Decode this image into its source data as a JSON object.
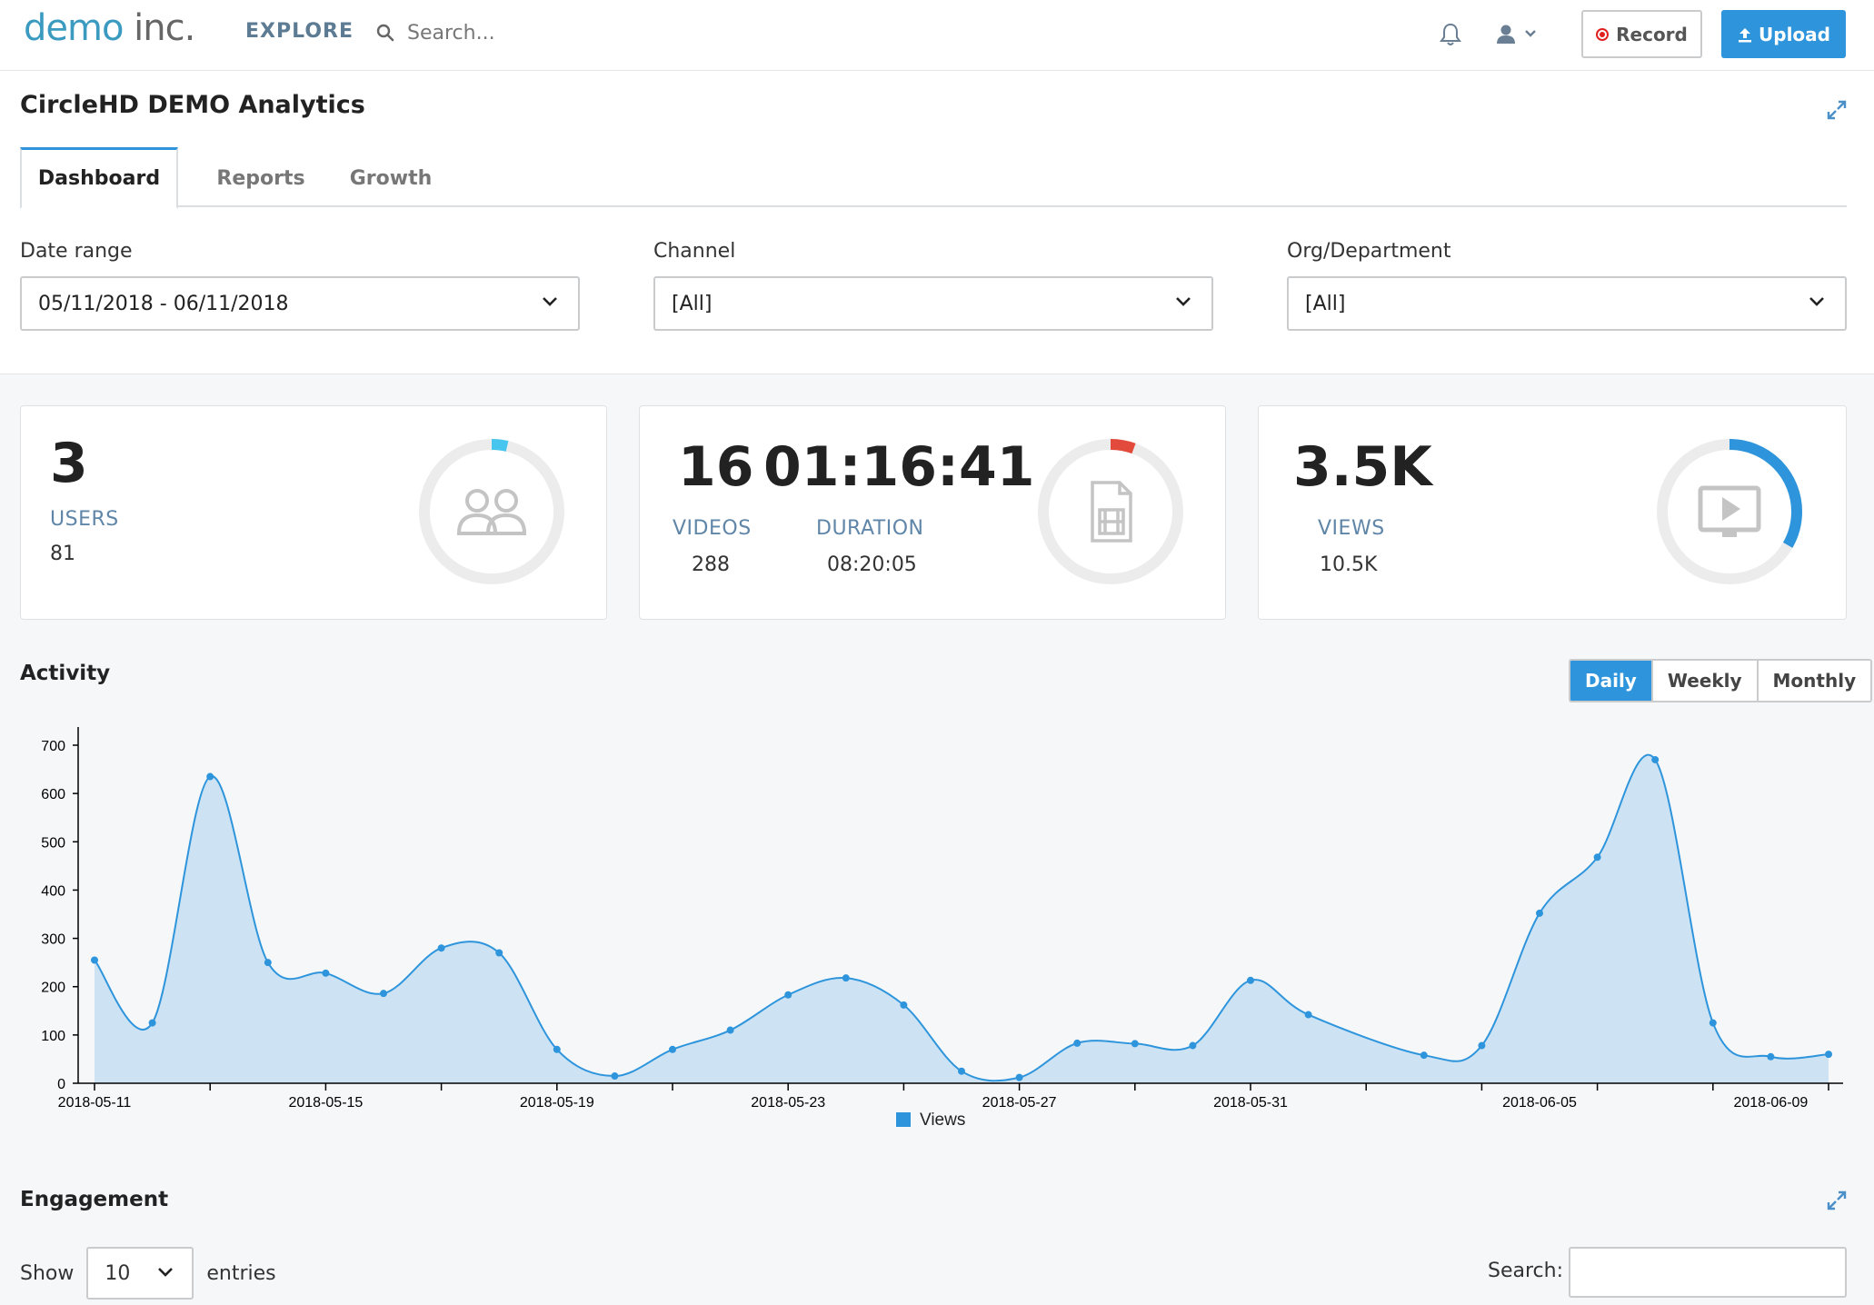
{
  "nav": {
    "logo_part1": "demo",
    "logo_part2": "inc.",
    "explore": "EXPLORE",
    "search_placeholder": "Search...",
    "record_label": "Record",
    "upload_label": "Upload"
  },
  "header": {
    "title": "CircleHD DEMO Analytics",
    "tabs": [
      "Dashboard",
      "Reports",
      "Growth"
    ],
    "active_tab": "Dashboard"
  },
  "filters": {
    "date_range": {
      "label": "Date range",
      "value": "05/11/2018 - 06/11/2018"
    },
    "channel": {
      "label": "Channel",
      "value": "[All]"
    },
    "org": {
      "label": "Org/Department",
      "value": "[All]"
    }
  },
  "stats": {
    "users": {
      "value": "3",
      "caption": "USERS",
      "sub": "81",
      "ring_fraction": 0.037,
      "ring_color": "#46c6ee"
    },
    "videos": {
      "value": "16",
      "caption": "VIDEOS",
      "sub": "288",
      "ring_fraction": 0.056,
      "ring_color": "#e24a3b"
    },
    "duration": {
      "value": "01:16:41",
      "caption": "DURATION",
      "sub": "08:20:05"
    },
    "views": {
      "value": "3.5K",
      "caption": "VIEWS",
      "sub": "10.5K",
      "ring_fraction": 0.333,
      "ring_color": "#2e95dc"
    }
  },
  "activity": {
    "title": "Activity",
    "periods": [
      "Daily",
      "Weekly",
      "Monthly"
    ],
    "active_period": "Daily"
  },
  "chart_data": {
    "type": "area",
    "title": "",
    "xlabel": "",
    "ylabel": "",
    "ylim": [
      0,
      700
    ],
    "yticks": [
      0,
      100,
      200,
      300,
      400,
      500,
      600,
      700
    ],
    "x": [
      "2018-05-11",
      "2018-05-12",
      "2018-05-13",
      "2018-05-14",
      "2018-05-15",
      "2018-05-16",
      "2018-05-17",
      "2018-05-18",
      "2018-05-19",
      "2018-05-20",
      "2018-05-21",
      "2018-05-22",
      "2018-05-23",
      "2018-05-24",
      "2018-05-25",
      "2018-05-26",
      "2018-05-27",
      "2018-05-28",
      "2018-05-29",
      "2018-05-30",
      "2018-05-31",
      "2018-06-01",
      "2018-06-02",
      "2018-06-03",
      "2018-06-04",
      "2018-06-05",
      "2018-06-06",
      "2018-06-07",
      "2018-06-08",
      "2018-06-09",
      "2018-06-10"
    ],
    "x_tick_labels": [
      "2018-05-11",
      "2018-05-15",
      "2018-05-19",
      "2018-05-23",
      "2018-05-27",
      "2018-05-31",
      "2018-06-05",
      "2018-06-09"
    ],
    "series": [
      {
        "name": "Views",
        "color": "#2e95dc",
        "values": [
          255,
          125,
          635,
          250,
          228,
          186,
          280,
          270,
          70,
          15,
          70,
          110,
          183,
          218,
          162,
          25,
          12,
          83,
          82,
          78,
          213,
          142,
          null,
          58,
          78,
          352,
          468,
          670,
          125,
          55,
          60
        ]
      }
    ],
    "legend": "bottom-center",
    "grid": false
  },
  "engagement": {
    "title": "Engagement",
    "show_label": "Show",
    "entries_value": "10",
    "entries_label": "entries",
    "search_label": "Search:"
  }
}
